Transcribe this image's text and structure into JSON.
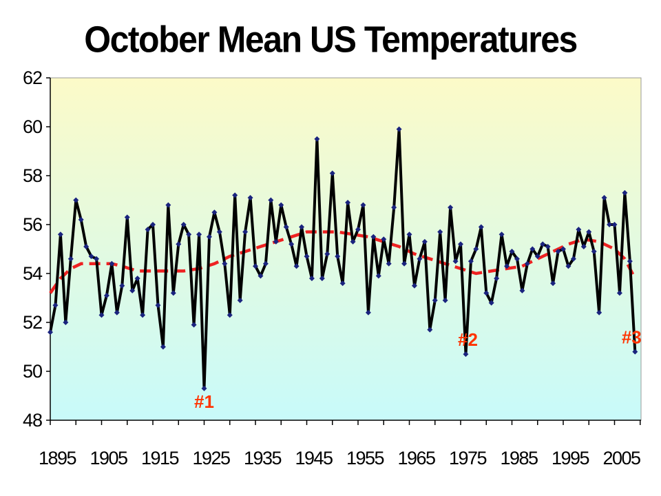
{
  "chart_data": {
    "type": "line",
    "title": "October Mean US Temperatures",
    "xlabel": "",
    "ylabel": "",
    "xlim": [
      1895,
      2009
    ],
    "ylim": [
      48,
      62
    ],
    "yticks": [
      48,
      50,
      52,
      54,
      56,
      58,
      60,
      62
    ],
    "xticks": [
      1895,
      1905,
      1915,
      1925,
      1935,
      1945,
      1955,
      1965,
      1975,
      1985,
      1995,
      2005
    ],
    "grid": false,
    "legend": "none",
    "colors": {
      "series": "#000000",
      "markers": "#1a237e",
      "trend": "#ee2222",
      "annotations": "#ff3300",
      "plot_top": "#fcfac8",
      "plot_bottom": "#c8fafa"
    },
    "series": [
      {
        "style": "line-with-markers",
        "x": [
          1895,
          1896,
          1897,
          1898,
          1899,
          1900,
          1901,
          1902,
          1903,
          1904,
          1905,
          1906,
          1907,
          1908,
          1909,
          1910,
          1911,
          1912,
          1913,
          1914,
          1915,
          1916,
          1917,
          1918,
          1919,
          1920,
          1921,
          1922,
          1923,
          1924,
          1925,
          1926,
          1927,
          1928,
          1929,
          1930,
          1931,
          1932,
          1933,
          1934,
          1935,
          1936,
          1937,
          1938,
          1939,
          1940,
          1941,
          1942,
          1943,
          1944,
          1945,
          1946,
          1947,
          1948,
          1949,
          1950,
          1951,
          1952,
          1953,
          1954,
          1955,
          1956,
          1957,
          1958,
          1959,
          1960,
          1961,
          1962,
          1963,
          1964,
          1965,
          1966,
          1967,
          1968,
          1969,
          1970,
          1971,
          1972,
          1973,
          1974,
          1975,
          1976,
          1977,
          1978,
          1979,
          1980,
          1981,
          1982,
          1983,
          1984,
          1985,
          1986,
          1987,
          1988,
          1989,
          1990,
          1991,
          1992,
          1993,
          1994,
          1995,
          1996,
          1997,
          1998,
          1999,
          2000,
          2001,
          2002,
          2003,
          2004,
          2005,
          2006,
          2007,
          2008,
          2009
        ],
        "y": [
          51.6,
          52.7,
          55.6,
          52.0,
          54.6,
          57.0,
          56.2,
          55.1,
          54.7,
          54.6,
          52.3,
          53.1,
          54.4,
          52.4,
          53.5,
          56.3,
          53.3,
          53.8,
          52.3,
          55.8,
          56.0,
          52.7,
          51.0,
          56.8,
          53.2,
          55.2,
          56.0,
          55.6,
          51.9,
          55.6,
          49.3,
          55.5,
          56.5,
          55.7,
          54.4,
          52.3,
          57.2,
          52.9,
          55.7,
          57.1,
          54.3,
          53.9,
          54.4,
          57.0,
          55.3,
          56.8,
          55.9,
          55.2,
          54.3,
          55.9,
          54.7,
          53.8,
          59.5,
          53.8,
          54.8,
          58.1,
          54.7,
          53.6,
          56.9,
          55.3,
          55.8,
          56.8,
          52.4,
          55.5,
          53.9,
          55.4,
          54.4,
          56.7,
          59.9,
          54.4,
          55.6,
          53.5,
          54.6,
          55.3,
          51.7,
          52.9,
          55.7,
          52.9,
          56.7,
          54.5,
          55.2,
          50.7,
          54.5,
          55.0,
          55.9,
          53.2,
          52.8,
          53.8,
          55.6,
          54.3,
          54.9,
          54.6,
          53.3,
          54.4,
          55.0,
          54.7,
          55.2,
          55.1,
          53.6,
          54.9,
          55.0,
          54.3,
          54.6,
          55.8,
          55.1,
          55.7,
          54.9,
          52.4,
          57.1,
          56.0,
          56.0,
          53.2,
          57.3,
          54.5,
          50.8
        ]
      },
      {
        "style": "dashed-trend",
        "x": [
          1895,
          1897,
          1899,
          1901,
          1903,
          1905,
          1907,
          1909,
          1912,
          1915,
          1918,
          1921,
          1924,
          1927,
          1930,
          1933,
          1936,
          1939,
          1942,
          1945,
          1948,
          1951,
          1954,
          1957,
          1960,
          1963,
          1966,
          1969,
          1972,
          1975,
          1978,
          1981,
          1984,
          1987,
          1990,
          1993,
          1996,
          1999,
          2002,
          2005,
          2007,
          2009
        ],
        "y": [
          53.2,
          53.8,
          54.2,
          54.4,
          54.4,
          54.4,
          54.4,
          54.3,
          54.1,
          54.1,
          54.1,
          54.1,
          54.2,
          54.4,
          54.7,
          54.9,
          55.1,
          55.3,
          55.5,
          55.7,
          55.7,
          55.7,
          55.6,
          55.5,
          55.3,
          55.1,
          54.8,
          54.6,
          54.4,
          54.2,
          54.0,
          54.1,
          54.2,
          54.3,
          54.6,
          54.9,
          55.2,
          55.4,
          55.3,
          55.0,
          54.6,
          53.8
        ]
      }
    ],
    "annotations": [
      {
        "text": "#1",
        "x": 1925,
        "y": 49.3
      },
      {
        "text": "#2",
        "x": 1976,
        "y": 50.7
      },
      {
        "text": "#3",
        "x": 2009,
        "y": 50.8
      }
    ]
  }
}
